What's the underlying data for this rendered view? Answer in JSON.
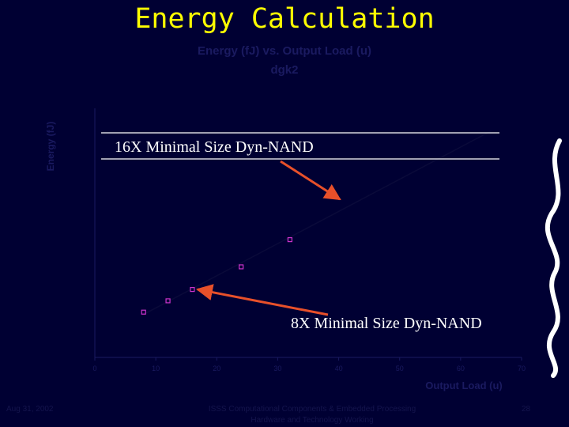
{
  "slide": {
    "title": "Energy Calculation",
    "chart_title_line1": "Energy (fJ) vs. Output Load (u)",
    "chart_title_line2": "dgk2",
    "callout_16x": "16X Minimal Size Dyn-NAND",
    "callout_8x": "8X Minimal Size Dyn-NAND",
    "footer_date": "Aug 31, 2002",
    "footer_line1": "ISSS Computational Components & Embedded Processing",
    "footer_line2": "Hardware and Technology Working",
    "footer_page": "28"
  },
  "colors": {
    "background": "#000033",
    "title": "#ffff00",
    "arrow": "#e8502a",
    "markers": "#cc33cc",
    "faint_text": "#1a1a60"
  },
  "chart_data": {
    "type": "scatter",
    "title": "Energy (fJ) vs. Output Load (u)",
    "subtitle": "dgk2",
    "xlabel": "Output Load (u)",
    "ylabel": "Energy (fJ)",
    "xlim": [
      0,
      70
    ],
    "ylim": [
      100,
      210
    ],
    "x_ticks": [
      0,
      10,
      20,
      30,
      40,
      50,
      60,
      70
    ],
    "series": [
      {
        "name": "",
        "x": [
          8,
          12,
          16,
          24,
          32
        ],
        "y": [
          120,
          125,
          130,
          140,
          152
        ]
      }
    ],
    "trendline": {
      "x": [
        8,
        65
      ],
      "y": [
        119,
        200
      ]
    },
    "grid": false,
    "legend": "none"
  }
}
